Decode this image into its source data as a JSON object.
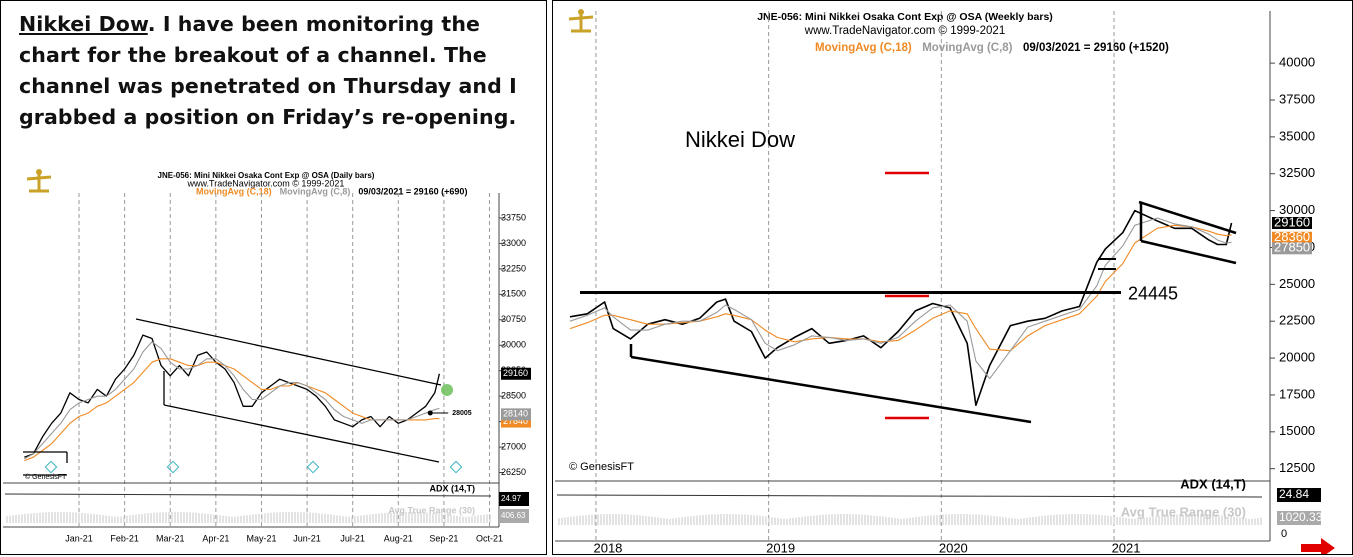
{
  "article": {
    "link": "Nikkei Dow",
    "text": ". I have been monitoring the chart for the breakout of a channel. The channel was penetrated on Thursday and I grabbed a position on Friday’s re-opening."
  },
  "chart_data": [
    {
      "type": "line",
      "title": "JNE-056:  Mini Nikkei Osaka Cont Exp @ OSA  (Daily bars)",
      "subtitle": "www.TradeNavigator.com © 1999-2021",
      "status": "09/03/2021 = 29160 (+690)",
      "credit": "© GenesisFT",
      "color": "#000000",
      "x": [
        -0.2,
        0,
        0.2,
        0.4,
        0.6,
        0.8,
        1.0,
        1.2,
        1.4,
        1.6,
        1.8,
        2.0,
        2.2,
        2.4,
        2.6,
        2.8,
        3.0,
        3.2,
        3.4,
        3.6,
        3.8,
        4.0,
        4.2,
        4.4,
        4.6,
        4.8,
        5.0,
        5.2,
        5.4,
        5.6,
        5.8,
        6.0,
        6.2,
        6.4,
        6.6,
        6.8,
        7.0,
        7.2,
        7.4,
        7.6,
        7.8,
        8.0,
        8.2,
        8.4,
        8.6,
        8.8,
        8.9
      ],
      "values": [
        26700,
        26800,
        27300,
        27700,
        28000,
        28600,
        28400,
        28300,
        28700,
        28500,
        29000,
        29300,
        29700,
        30300,
        30200,
        29400,
        29100,
        29400,
        29100,
        29700,
        29800,
        29500,
        29300,
        28900,
        28200,
        28200,
        28600,
        28800,
        29000,
        28900,
        28800,
        28700,
        28500,
        28200,
        27800,
        27700,
        27600,
        27800,
        27900,
        27600,
        27900,
        27700,
        27800,
        28000,
        28200,
        28600,
        29160
      ],
      "series": [
        {
          "name": "MovingAvg (C,18)",
          "color": "#f08a24",
          "values": [
            26600,
            26700,
            26900,
            27100,
            27400,
            27700,
            27900,
            28000,
            28200,
            28300,
            28500,
            28700,
            28900,
            29200,
            29500,
            29600,
            29600,
            29500,
            29400,
            29400,
            29500,
            29500,
            29400,
            29300,
            29100,
            28900,
            28700,
            28700,
            28800,
            28800,
            28900,
            28800,
            28700,
            28600,
            28400,
            28200,
            28000,
            27900,
            27800,
            27800,
            27800,
            27800,
            27800,
            27800,
            27800,
            27840,
            27840
          ]
        },
        {
          "name": "MovingAvg (C,8)",
          "color": "#9a9a9a",
          "values": [
            26650,
            26800,
            27100,
            27400,
            27700,
            28100,
            28300,
            28400,
            28500,
            28500,
            28700,
            29000,
            29300,
            29800,
            30100,
            29900,
            29500,
            29300,
            29300,
            29400,
            29600,
            29600,
            29400,
            29100,
            28700,
            28400,
            28400,
            28600,
            28800,
            28900,
            28900,
            28800,
            28600,
            28400,
            28100,
            27900,
            27800,
            27700,
            27800,
            27800,
            27800,
            27800,
            27800,
            27900,
            28000,
            28100,
            28140
          ]
        }
      ],
      "xlim": [
        -0.25,
        10.12
      ],
      "xticks": [
        {
          "value": 1,
          "label": "Jan-21"
        },
        {
          "value": 2,
          "label": "Feb-21"
        },
        {
          "value": 3,
          "label": "Mar-21"
        },
        {
          "value": 4,
          "label": "Apr-21"
        },
        {
          "value": 5,
          "label": "May-21"
        },
        {
          "value": 6,
          "label": "Jun-21"
        },
        {
          "value": 7,
          "label": "Jul-21"
        },
        {
          "value": 8,
          "label": "Aug-21"
        },
        {
          "value": 9,
          "label": "Sep-21"
        },
        {
          "value": 10,
          "label": "Oct-21"
        }
      ],
      "ylim": [
        26000,
        34250
      ],
      "yticks": [
        26250,
        27000,
        27750,
        28500,
        29250,
        30000,
        30750,
        31500,
        32250,
        33000,
        33750
      ],
      "markers": [
        {
          "x": 8.7,
          "y": 28005
        }
      ],
      "indicators": [
        {
          "name": "ADX (14,T)",
          "value": 24.97
        },
        {
          "name": "Avg True Range (30)",
          "value": 406.63
        }
      ]
    },
    {
      "type": "line",
      "title": "JNE-056:  Mini Nikkei Osaka Cont Exp @ OSA  (Weekly bars)",
      "subtitle": "www.TradeNavigator.com © 1999-2021",
      "status": "09/03/2021 = 29160 (+1520)",
      "credit": "© GenesisFT",
      "annotation": "Nikkei Dow",
      "color": "#000000",
      "x": [
        2017.85,
        2017.95,
        2018.05,
        2018.1,
        2018.2,
        2018.3,
        2018.4,
        2018.5,
        2018.6,
        2018.7,
        2018.75,
        2018.8,
        2018.9,
        2018.98,
        2019.05,
        2019.15,
        2019.25,
        2019.35,
        2019.45,
        2019.55,
        2019.65,
        2019.75,
        2019.85,
        2019.95,
        2020.05,
        2020.15,
        2020.2,
        2020.28,
        2020.4,
        2020.5,
        2020.6,
        2020.7,
        2020.8,
        2020.9,
        2020.95,
        2021.05,
        2021.12,
        2021.25,
        2021.35,
        2021.45,
        2021.55,
        2021.6,
        2021.65,
        2021.68
      ],
      "values": [
        22800,
        23000,
        23800,
        22000,
        21300,
        22300,
        22600,
        22300,
        22700,
        23800,
        24000,
        22500,
        21800,
        20000,
        20700,
        21400,
        22000,
        21000,
        21200,
        21500,
        20700,
        21800,
        23200,
        23700,
        23400,
        21000,
        16800,
        19500,
        22200,
        22500,
        22700,
        23200,
        23500,
        26500,
        27400,
        28500,
        30000,
        29300,
        28800,
        28800,
        28000,
        27700,
        27700,
        29160
      ],
      "series": [
        {
          "name": "MovingAvg (C,18)",
          "color": "#f08a24",
          "values": [
            22000,
            22400,
            22900,
            22900,
            22600,
            22300,
            22300,
            22400,
            22500,
            22800,
            23000,
            22900,
            22600,
            21900,
            21400,
            21100,
            21300,
            21400,
            21300,
            21300,
            21100,
            21200,
            21900,
            22700,
            23200,
            23000,
            22000,
            20600,
            20500,
            21500,
            22200,
            22600,
            23000,
            24200,
            25200,
            26400,
            27800,
            28800,
            29000,
            28900,
            28600,
            28400,
            28300,
            28360
          ]
        },
        {
          "name": "MovingAvg (C,8)",
          "color": "#9a9a9a",
          "values": [
            22500,
            22900,
            23400,
            22800,
            21900,
            21900,
            22300,
            22500,
            22500,
            23100,
            23600,
            23300,
            22600,
            21000,
            20500,
            20900,
            21500,
            21400,
            21200,
            21300,
            21000,
            21400,
            22500,
            23400,
            23600,
            22500,
            19800,
            18600,
            20500,
            22100,
            22500,
            22900,
            23300,
            24900,
            26300,
            27600,
            29000,
            29500,
            29100,
            28900,
            28400,
            28000,
            27800,
            27850
          ]
        }
      ],
      "xlim": [
        2017.815,
        2021.88
      ],
      "xticks": [
        2018,
        2019,
        2020,
        2021
      ],
      "ylim": [
        11800,
        41500
      ],
      "yticks": [
        12500,
        15000,
        17500,
        20000,
        22500,
        25000,
        27500,
        30000,
        32500,
        35000,
        37500,
        40000
      ],
      "hlines": [
        24445
      ],
      "indicators": [
        {
          "name": "ADX (14,T)",
          "value": 24.84
        },
        {
          "name": "Avg True Range (30)",
          "value": 1020.33,
          "ticks": [
            0
          ]
        }
      ]
    }
  ]
}
